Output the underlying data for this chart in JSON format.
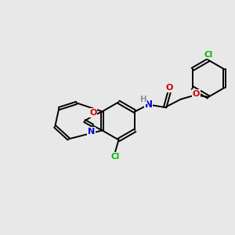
{
  "background_color": "#e8e8e8",
  "bond_color": "#000000",
  "atom_colors": {
    "Cl": "#00bb00",
    "O": "#cc0000",
    "N": "#0000cc",
    "H": "#7a9a9a",
    "C": "#000000"
  },
  "figsize": [
    3.0,
    3.0
  ],
  "dpi": 100
}
